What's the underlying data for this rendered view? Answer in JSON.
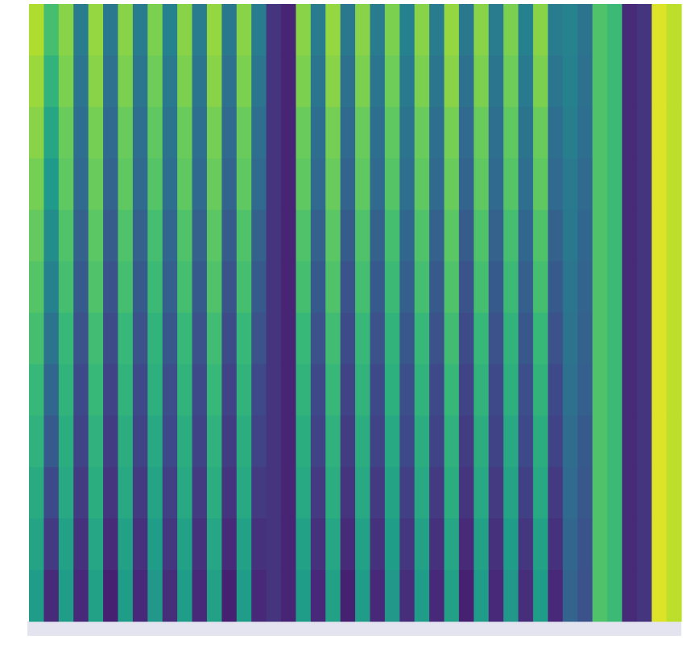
{
  "chart_data": {
    "type": "heatmap",
    "colormap": "viridis",
    "zlim": [
      0,
      1
    ],
    "z": [
      [
        0.88,
        0.7,
        0.82,
        0.42,
        0.84,
        0.4,
        0.82,
        0.42,
        0.8,
        0.44,
        0.82,
        0.42,
        0.84,
        0.4,
        0.82,
        0.42,
        0.15,
        0.1,
        0.82,
        0.42,
        0.84,
        0.4,
        0.82,
        0.42,
        0.8,
        0.44,
        0.82,
        0.42,
        0.84,
        0.4,
        0.82,
        0.42,
        0.8,
        0.44,
        0.82,
        0.42,
        0.45,
        0.38,
        0.72,
        0.68,
        0.12,
        0.15,
        0.95,
        0.9
      ],
      [
        0.85,
        0.65,
        0.8,
        0.39,
        0.82,
        0.37,
        0.8,
        0.39,
        0.78,
        0.41,
        0.8,
        0.39,
        0.82,
        0.37,
        0.8,
        0.39,
        0.15,
        0.1,
        0.8,
        0.39,
        0.82,
        0.37,
        0.8,
        0.39,
        0.78,
        0.41,
        0.8,
        0.39,
        0.82,
        0.37,
        0.8,
        0.39,
        0.78,
        0.41,
        0.8,
        0.39,
        0.44,
        0.37,
        0.72,
        0.68,
        0.12,
        0.15,
        0.95,
        0.9
      ],
      [
        0.82,
        0.59,
        0.77,
        0.36,
        0.79,
        0.34,
        0.77,
        0.36,
        0.75,
        0.38,
        0.77,
        0.36,
        0.79,
        0.34,
        0.77,
        0.36,
        0.15,
        0.1,
        0.77,
        0.36,
        0.79,
        0.34,
        0.77,
        0.36,
        0.75,
        0.38,
        0.77,
        0.36,
        0.79,
        0.34,
        0.77,
        0.36,
        0.75,
        0.38,
        0.77,
        0.36,
        0.43,
        0.36,
        0.72,
        0.68,
        0.12,
        0.15,
        0.95,
        0.9
      ],
      [
        0.79,
        0.54,
        0.75,
        0.34,
        0.77,
        0.32,
        0.75,
        0.34,
        0.73,
        0.36,
        0.75,
        0.34,
        0.77,
        0.32,
        0.75,
        0.34,
        0.15,
        0.1,
        0.75,
        0.34,
        0.77,
        0.32,
        0.75,
        0.34,
        0.73,
        0.36,
        0.75,
        0.34,
        0.77,
        0.32,
        0.75,
        0.34,
        0.73,
        0.36,
        0.75,
        0.34,
        0.41,
        0.34,
        0.72,
        0.68,
        0.12,
        0.15,
        0.95,
        0.9
      ],
      [
        0.76,
        0.49,
        0.72,
        0.31,
        0.74,
        0.29,
        0.72,
        0.31,
        0.7,
        0.33,
        0.72,
        0.31,
        0.74,
        0.29,
        0.72,
        0.31,
        0.15,
        0.1,
        0.72,
        0.31,
        0.74,
        0.29,
        0.72,
        0.31,
        0.7,
        0.33,
        0.72,
        0.31,
        0.74,
        0.29,
        0.72,
        0.31,
        0.7,
        0.33,
        0.72,
        0.31,
        0.4,
        0.33,
        0.72,
        0.68,
        0.12,
        0.15,
        0.95,
        0.9
      ],
      [
        0.73,
        0.44,
        0.7,
        0.28,
        0.72,
        0.26,
        0.7,
        0.28,
        0.68,
        0.3,
        0.7,
        0.28,
        0.72,
        0.26,
        0.7,
        0.28,
        0.15,
        0.1,
        0.7,
        0.28,
        0.72,
        0.26,
        0.7,
        0.28,
        0.68,
        0.3,
        0.7,
        0.28,
        0.72,
        0.26,
        0.7,
        0.28,
        0.68,
        0.3,
        0.7,
        0.28,
        0.39,
        0.32,
        0.72,
        0.68,
        0.12,
        0.15,
        0.95,
        0.9
      ],
      [
        0.7,
        0.38,
        0.67,
        0.25,
        0.69,
        0.23,
        0.67,
        0.25,
        0.65,
        0.27,
        0.67,
        0.25,
        0.69,
        0.23,
        0.67,
        0.25,
        0.15,
        0.1,
        0.67,
        0.25,
        0.69,
        0.23,
        0.67,
        0.25,
        0.65,
        0.27,
        0.67,
        0.25,
        0.69,
        0.23,
        0.67,
        0.25,
        0.65,
        0.27,
        0.67,
        0.25,
        0.38,
        0.31,
        0.72,
        0.68,
        0.12,
        0.15,
        0.95,
        0.9
      ],
      [
        0.67,
        0.33,
        0.65,
        0.22,
        0.67,
        0.2,
        0.65,
        0.22,
        0.63,
        0.24,
        0.65,
        0.22,
        0.67,
        0.2,
        0.65,
        0.22,
        0.15,
        0.1,
        0.65,
        0.22,
        0.67,
        0.2,
        0.65,
        0.22,
        0.63,
        0.24,
        0.65,
        0.22,
        0.67,
        0.2,
        0.65,
        0.22,
        0.63,
        0.24,
        0.65,
        0.22,
        0.37,
        0.3,
        0.72,
        0.68,
        0.12,
        0.15,
        0.95,
        0.9
      ],
      [
        0.64,
        0.28,
        0.62,
        0.2,
        0.64,
        0.18,
        0.62,
        0.2,
        0.6,
        0.22,
        0.62,
        0.2,
        0.64,
        0.18,
        0.62,
        0.2,
        0.15,
        0.1,
        0.62,
        0.2,
        0.64,
        0.18,
        0.62,
        0.2,
        0.6,
        0.22,
        0.62,
        0.2,
        0.64,
        0.18,
        0.62,
        0.2,
        0.6,
        0.22,
        0.62,
        0.2,
        0.35,
        0.28,
        0.72,
        0.68,
        0.12,
        0.15,
        0.95,
        0.9
      ],
      [
        0.61,
        0.22,
        0.6,
        0.17,
        0.62,
        0.15,
        0.6,
        0.17,
        0.58,
        0.19,
        0.6,
        0.17,
        0.62,
        0.15,
        0.6,
        0.17,
        0.15,
        0.1,
        0.6,
        0.17,
        0.62,
        0.15,
        0.6,
        0.17,
        0.58,
        0.19,
        0.6,
        0.17,
        0.62,
        0.15,
        0.6,
        0.17,
        0.58,
        0.19,
        0.6,
        0.17,
        0.34,
        0.27,
        0.72,
        0.68,
        0.12,
        0.15,
        0.95,
        0.9
      ],
      [
        0.58,
        0.17,
        0.57,
        0.14,
        0.59,
        0.12,
        0.57,
        0.14,
        0.55,
        0.16,
        0.57,
        0.14,
        0.59,
        0.12,
        0.57,
        0.14,
        0.15,
        0.1,
        0.57,
        0.14,
        0.59,
        0.12,
        0.57,
        0.14,
        0.55,
        0.16,
        0.57,
        0.14,
        0.59,
        0.12,
        0.57,
        0.14,
        0.55,
        0.16,
        0.57,
        0.14,
        0.33,
        0.26,
        0.72,
        0.68,
        0.12,
        0.15,
        0.95,
        0.9
      ],
      [
        0.55,
        0.12,
        0.55,
        0.11,
        0.57,
        0.09,
        0.55,
        0.11,
        0.53,
        0.13,
        0.55,
        0.11,
        0.57,
        0.09,
        0.55,
        0.11,
        0.15,
        0.1,
        0.55,
        0.11,
        0.57,
        0.09,
        0.55,
        0.11,
        0.53,
        0.13,
        0.55,
        0.11,
        0.57,
        0.09,
        0.55,
        0.11,
        0.53,
        0.13,
        0.55,
        0.11,
        0.32,
        0.25,
        0.72,
        0.68,
        0.12,
        0.15,
        0.95,
        0.9
      ]
    ]
  }
}
